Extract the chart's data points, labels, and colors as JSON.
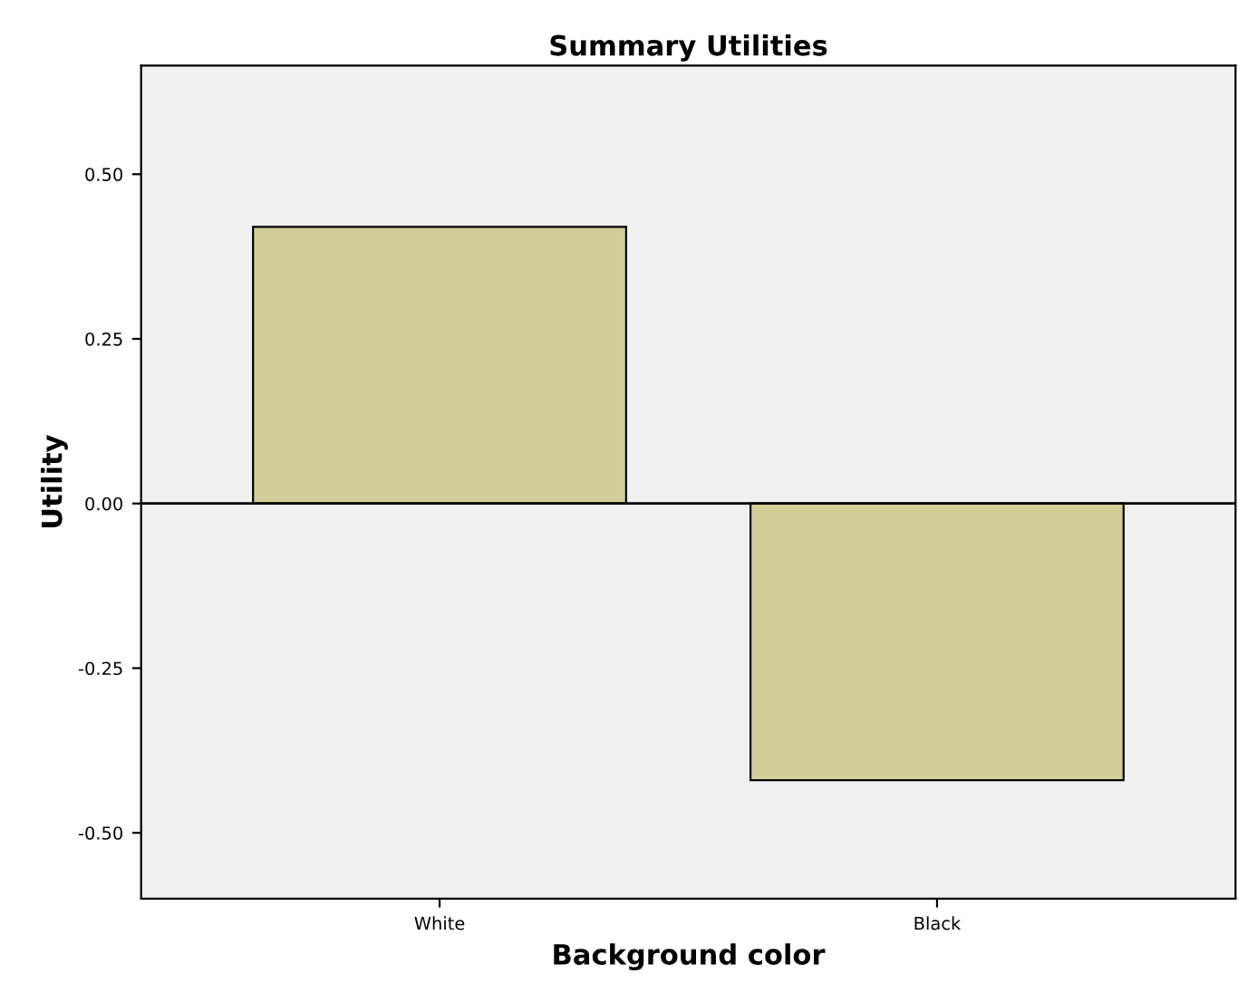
{
  "chart_data": {
    "type": "bar",
    "title": "Summary Utilities",
    "xlabel": "Background color",
    "ylabel": "Utility",
    "categories": [
      "White",
      "Black"
    ],
    "values": [
      0.42,
      -0.42
    ],
    "color": "#d3ce98",
    "ylim": [
      -0.6,
      0.665
    ],
    "yticks": [
      {
        "value": -0.5,
        "label": "-0.50"
      },
      {
        "value": -0.25,
        "label": "-0.25"
      },
      {
        "value": 0,
        "label": "0.00"
      },
      {
        "value": 0.25,
        "label": "0.25"
      },
      {
        "value": 0.5,
        "label": "0.50"
      }
    ],
    "ref_lines": [
      {
        "axis": "y",
        "value": 0,
        "color": "#000000"
      }
    ],
    "grid": false,
    "legend": false
  }
}
